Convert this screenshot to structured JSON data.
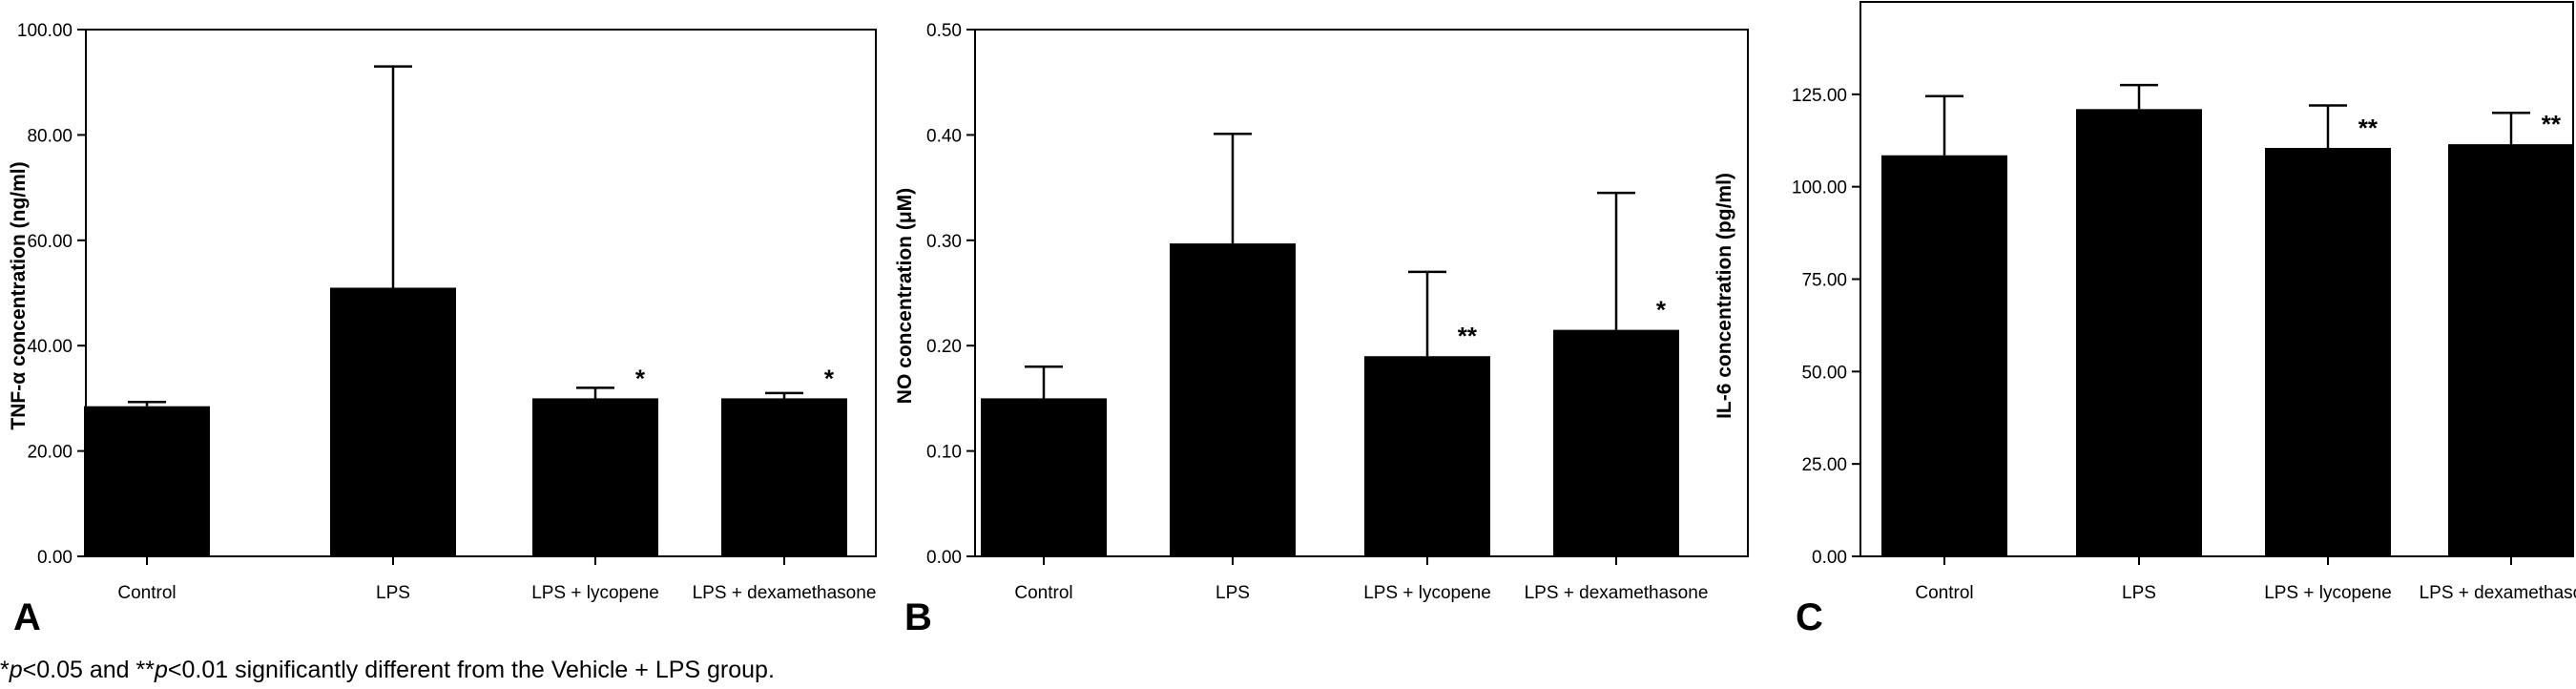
{
  "chart_data": [
    {
      "type": "bar",
      "panel": "A",
      "ylabel": "TNF-α concentration (ng/ml)",
      "ylim": [
        0,
        100
      ],
      "yticks": [
        0,
        20,
        40,
        60,
        80,
        100
      ],
      "ytick_labels": [
        "0.00",
        "20.00",
        "40.00",
        "60.00",
        "80.00",
        "100.00"
      ],
      "categories": [
        "Control",
        "LPS",
        "LPS + lycopene",
        "LPS + dexamethasone"
      ],
      "values": [
        28.5,
        51,
        30,
        30
      ],
      "errors": [
        0.8,
        42,
        2,
        1
      ],
      "significance": [
        "",
        "",
        "*",
        "*"
      ]
    },
    {
      "type": "bar",
      "panel": "B",
      "ylabel": "NO concentration (μM)",
      "ylim": [
        0,
        0.5
      ],
      "yticks": [
        0,
        0.1,
        0.2,
        0.3,
        0.4,
        0.5
      ],
      "ytick_labels": [
        "0.00",
        "0.10",
        "0.20",
        "0.30",
        "0.40",
        "0.50"
      ],
      "categories": [
        "Control",
        "LPS",
        "LPS + lycopene",
        "LPS + dexamethasone"
      ],
      "values": [
        0.15,
        0.297,
        0.19,
        0.215
      ],
      "errors": [
        0.03,
        0.104,
        0.08,
        0.13
      ],
      "significance": [
        "",
        "",
        "**",
        "*"
      ]
    },
    {
      "type": "bar",
      "panel": "C",
      "ylabel": "IL-6 concentration (pg/ml)",
      "ylim": [
        0,
        150
      ],
      "yticks": [
        0,
        25,
        50,
        75,
        100,
        125
      ],
      "ytick_labels": [
        "0.00",
        "25.00",
        "50.00",
        "75.00",
        "100.00",
        "125.00"
      ],
      "categories": [
        "Control",
        "LPS",
        "LPS + lycopene",
        "LPS + dexamethasone"
      ],
      "values": [
        108.5,
        121,
        110.5,
        111.5
      ],
      "errors": [
        16,
        6.5,
        11.5,
        8.5
      ],
      "significance": [
        "",
        "",
        "**",
        "**"
      ]
    }
  ],
  "footnote": {
    "part1": "*",
    "p1": "p",
    "part2": "<0.05 and **",
    "p2": "p",
    "part3": "<0.01 significantly different from the Vehicle + LPS group."
  },
  "colors": {
    "bar": "#000000",
    "axis": "#000000",
    "background": "#ffffff"
  }
}
